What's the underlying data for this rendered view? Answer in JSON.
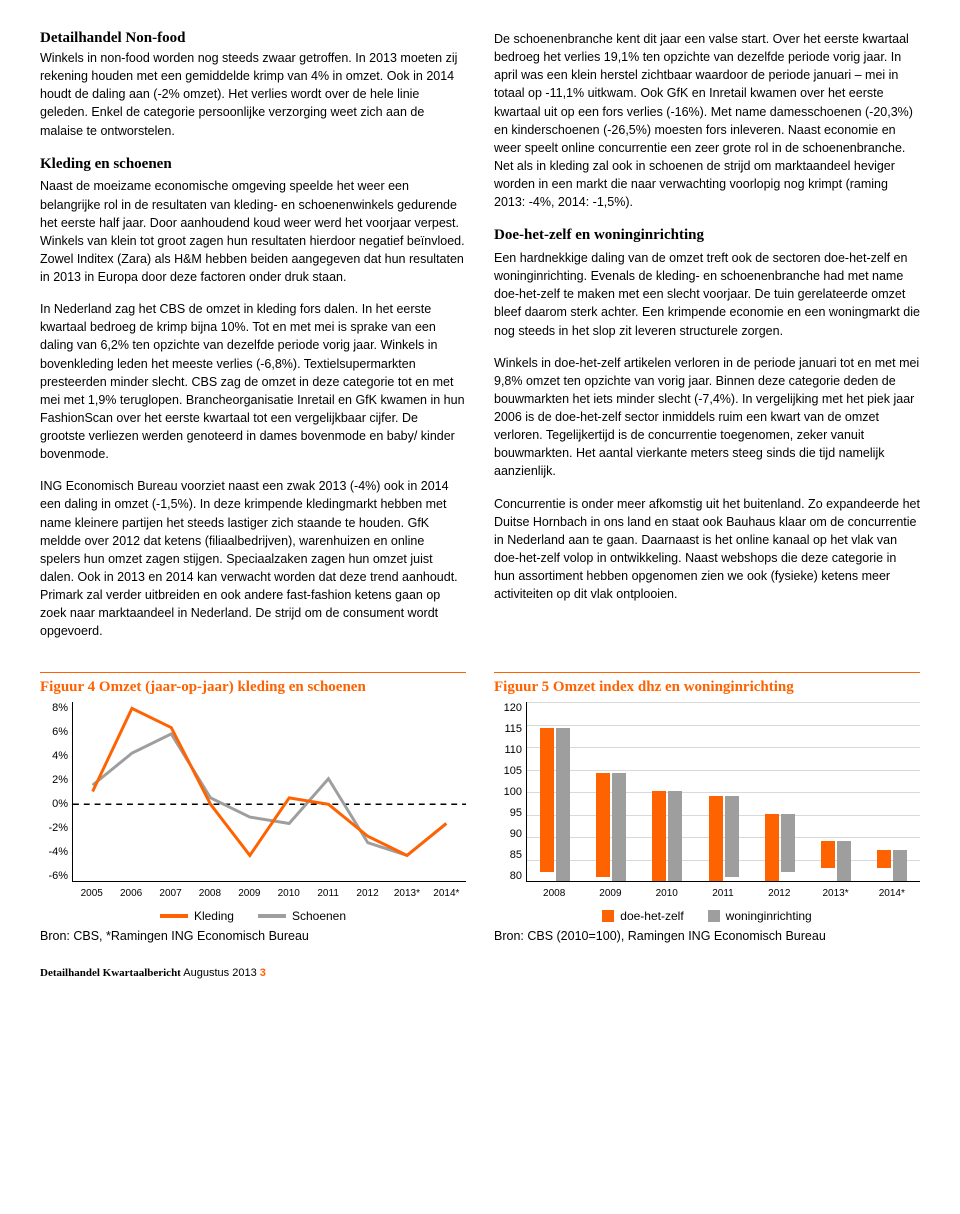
{
  "left": {
    "h1": "Detailhandel Non-food",
    "p1": "Winkels in non-food worden nog steeds zwaar getroffen. In 2013 moeten zij rekening houden met een gemiddelde krimp van 4% in omzet. Ook in 2014 houdt de daling aan (-2% omzet). Het verlies wordt over de hele linie geleden. Enkel de categorie persoonlijke verzorging weet zich aan de malaise te ontworstelen.",
    "h2": "Kleding en schoenen",
    "p2": "Naast de moeizame economische omgeving speelde het weer een belangrijke rol in de resultaten van kleding- en schoenenwinkels gedurende het eerste half jaar. Door aanhoudend koud weer werd het voorjaar verpest. Winkels van klein tot groot zagen hun resultaten hierdoor negatief beïnvloed. Zowel Inditex (Zara) als H&M hebben beiden aangegeven dat hun resultaten in 2013 in Europa door deze factoren onder druk staan.",
    "p3": "In Nederland zag het CBS de omzet in kleding fors dalen. In het eerste kwartaal bedroeg de krimp bijna 10%. Tot en met mei is sprake van een daling van 6,2% ten opzichte van dezelfde periode vorig jaar. Winkels in bovenkleding leden het meeste verlies (-6,8%). Textielsupermarkten presteerden minder slecht. CBS zag de omzet in deze categorie tot en met mei met 1,9% teruglopen. Brancheorganisatie Inretail en GfK kwamen in hun FashionScan over het eerste kwartaal tot een vergelijkbaar cijfer. De grootste verliezen werden genoteerd in dames bovenmode en baby/ kinder bovenmode.",
    "p4": "ING Economisch Bureau voorziet naast een zwak 2013 (-4%) ook in 2014 een daling in omzet (-1,5%). In deze krimpende kledingmarkt hebben met name kleinere partijen het steeds lastiger zich staande te houden. GfK meldde over 2012 dat ketens (filiaalbedrijven), warenhuizen en online spelers hun omzet zagen stijgen. Speciaalzaken zagen hun omzet juist dalen. Ook in 2013 en 2014 kan verwacht worden dat deze trend aanhoudt. Primark zal verder uitbreiden en ook andere fast-fashion ketens gaan op zoek naar marktaandeel in Nederland. De strijd om de consument wordt opgevoerd."
  },
  "right": {
    "p1": "De schoenenbranche kent dit jaar een valse start. Over het eerste kwartaal bedroeg het verlies 19,1% ten opzichte van dezelfde periode vorig jaar. In april was een klein herstel zichtbaar waardoor de periode januari – mei in totaal op -11,1% uitkwam. Ook GfK en Inretail kwamen over het eerste kwartaal uit op een fors verlies (-16%). Met name damesschoenen (-20,3%) en kinderschoenen (-26,5%) moesten fors inleveren. Naast economie en weer speelt online concurrentie een zeer grote rol in de schoenenbranche. Net als in kleding zal ook in schoenen de strijd om marktaandeel heviger worden in een markt die naar verwachting voorlopig nog krimpt (raming 2013: -4%, 2014: -1,5%).",
    "h1": "Doe-het-zelf en woninginrichting",
    "p2": "Een hardnekkige daling van de omzet treft ook de sectoren doe-het-zelf en woninginrichting. Evenals de kleding- en schoenenbranche had met name doe-het-zelf te maken met een slecht voorjaar. De tuin gerelateerde omzet bleef daarom sterk achter. Een krimpende economie en een woningmarkt die nog steeds in het slop zit leveren structurele zorgen.",
    "p3": "Winkels in doe-het-zelf artikelen verloren in de periode januari tot en met mei 9,8% omzet ten opzichte van vorig jaar. Binnen deze categorie deden de bouwmarkten het iets minder slecht (-7,4%). In vergelijking met het piek jaar 2006 is de doe-het-zelf sector inmiddels ruim een kwart van de omzet verloren. Tegelijkertijd is de concurrentie toegenomen, zeker vanuit bouwmarkten. Het aantal vierkante meters steeg sinds die tijd namelijk aanzienlijk.",
    "p4": "Concurrentie is onder meer afkomstig uit het buitenland. Zo expandeerde het Duitse Hornbach in ons land en staat ook Bauhaus klaar om de concurrentie in Nederland aan te gaan. Daarnaast is het online kanaal op het vlak van doe-het-zelf volop in ontwikkeling. Naast webshops die deze categorie in hun assortiment hebben opgenomen zien we ook (fysieke) ketens meer activiteiten op dit vlak ontplooien."
  },
  "chart4": {
    "title": "Figuur 4 Omzet (jaar-op-jaar) kleding en schoenen",
    "yticks": [
      "8%",
      "6%",
      "4%",
      "2%",
      "0%",
      "-2%",
      "-4%",
      "-6%"
    ],
    "xticks": [
      "2005",
      "2006",
      "2007",
      "2008",
      "2009",
      "2010",
      "2011",
      "2012",
      "2013*",
      "2014*"
    ],
    "ymin": -6,
    "ymax": 8,
    "series": {
      "kleding": {
        "label": "Kleding",
        "color": "#ff6200",
        "values": [
          1.0,
          7.5,
          6.0,
          0.0,
          -4.0,
          0.5,
          0.0,
          -2.5,
          -4.0,
          -1.5
        ]
      },
      "schoenen": {
        "label": "Schoenen",
        "color": "#9e9e9e",
        "values": [
          1.5,
          4.0,
          5.5,
          0.5,
          -1.0,
          -1.5,
          2.0,
          -3.0,
          -4.0,
          -1.5
        ]
      }
    },
    "source": "Bron: CBS, *Ramingen ING Economisch Bureau"
  },
  "chart5": {
    "title": "Figuur 5 Omzet index dhz en woninginrichting",
    "yticks": [
      "120",
      "115",
      "110",
      "105",
      "100",
      "95",
      "90",
      "85",
      "80"
    ],
    "xticks": [
      "2008",
      "2009",
      "2010",
      "2011",
      "2012",
      "2013*",
      "2014*"
    ],
    "ymin": 80,
    "ymax": 120,
    "series": {
      "dhz": {
        "label": "doe-het-zelf",
        "color": "#ff6200",
        "values": [
          112,
          103,
          100,
          99,
          95,
          86,
          84
        ]
      },
      "won": {
        "label": "woninginrichting",
        "color": "#9e9e9e",
        "values": [
          114,
          104,
          100,
          98,
          93,
          89,
          87
        ]
      }
    },
    "source": "Bron: CBS (2010=100), Ramingen ING Economisch Bureau"
  },
  "footer": {
    "bold": "Detailhandel Kwartaalbericht",
    "rest": " Augustus 2013 ",
    "page": "3"
  }
}
